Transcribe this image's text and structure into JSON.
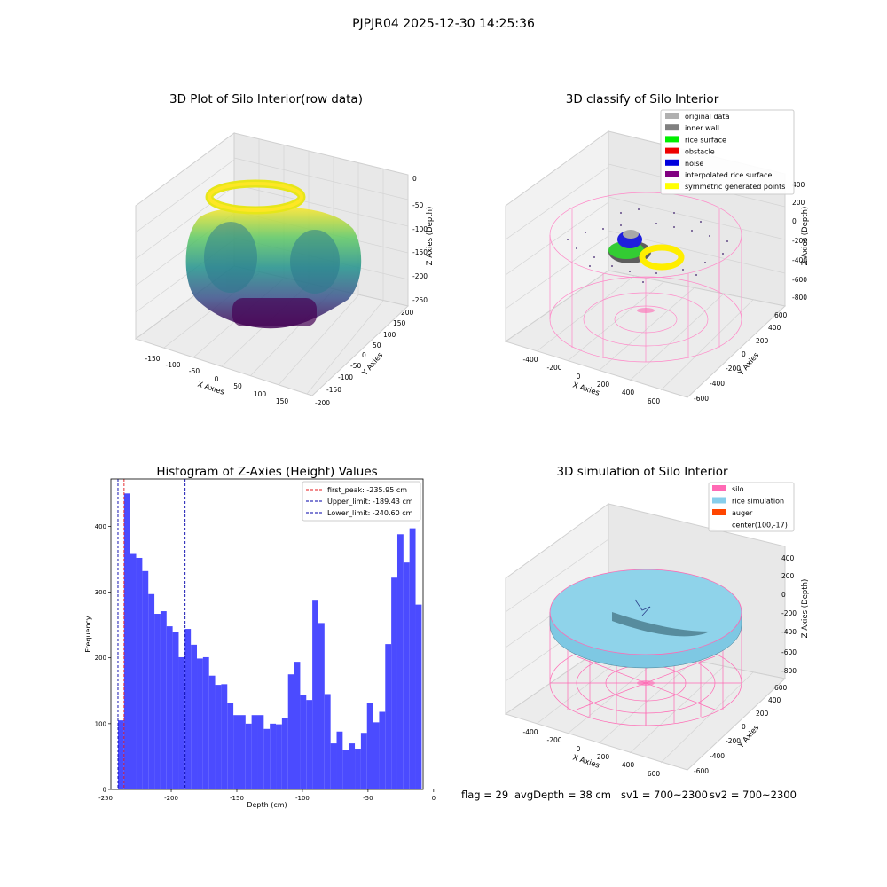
{
  "figure": {
    "suptitle": "PJPJR04 2025-12-30 14:25:36",
    "footer": {
      "flag": "flag = 29",
      "avg_depth": "avgDepth = 38 cm",
      "sv1": "sv1 = 700~2300",
      "sv2": "sv2 = 700~2300"
    }
  },
  "chart_data": [
    {
      "id": "raw3d",
      "type": "scatter",
      "title": "3D Plot of Silo Interior(row data)",
      "xlabel": "X Axies",
      "ylabel": "Y Axies",
      "zlabel": "Z Axies (Depth)",
      "x_ticks": [
        "-150",
        "-100",
        "-50",
        "0",
        "50",
        "100",
        "150"
      ],
      "y_ticks": [
        "-200",
        "-150",
        "-100",
        "-50",
        "0",
        "50",
        "100",
        "150",
        "200"
      ],
      "z_ticks": [
        "0",
        "-50",
        "-100",
        "-150",
        "-200",
        "-250"
      ],
      "xlim": [
        -180,
        180
      ],
      "ylim": [
        -200,
        200
      ],
      "zlim": [
        -250,
        0
      ],
      "colormap": "viridis",
      "grid": true
    },
    {
      "id": "classify3d",
      "type": "scatter",
      "title": "3D classify of Silo Interior",
      "xlabel": "X Axies",
      "ylabel": "Y Axies",
      "zlabel": "Z Axies (Depth)",
      "x_ticks": [
        "-400",
        "-200",
        "0",
        "200",
        "400",
        "600"
      ],
      "y_ticks": [
        "-600",
        "-400",
        "-200",
        "0",
        "200",
        "400",
        "600"
      ],
      "z_ticks": [
        "400",
        "200",
        "0",
        "-200",
        "-400",
        "-600",
        "-800"
      ],
      "legend_position": "upper-right",
      "legend": [
        {
          "label": "original data",
          "color": "#b0b0b0"
        },
        {
          "label": "inner wall",
          "color": "#808080"
        },
        {
          "label": "rice surface",
          "color": "#00ee00"
        },
        {
          "label": "obstacle",
          "color": "#ee0000"
        },
        {
          "label": "noise",
          "color": "#0000dd"
        },
        {
          "label": "interpolated rice surface",
          "color": "#800080"
        },
        {
          "label": "symmetric generated points",
          "color": "#ffff00"
        }
      ],
      "grid": true
    },
    {
      "id": "histogram",
      "type": "bar",
      "title": "Histogram of Z-Axies (Height) Values",
      "xlabel": "Depth (cm)",
      "ylabel": "Frequency",
      "xlim": [
        -246,
        -8
      ],
      "ylim": [
        0,
        472
      ],
      "x_ticks": [
        -250,
        -200,
        -150,
        -100,
        -50,
        0
      ],
      "y_ticks": [
        0,
        100,
        200,
        300,
        400
      ],
      "bin_start": -240.6,
      "bin_width": 4.63,
      "values": [
        105,
        450,
        358,
        352,
        332,
        297,
        267,
        271,
        248,
        240,
        201,
        244,
        220,
        199,
        201,
        173,
        159,
        160,
        132,
        113,
        113,
        100,
        113,
        113,
        92,
        100,
        99,
        109,
        175,
        194,
        144,
        136,
        287,
        253,
        145,
        70,
        88,
        60,
        70,
        62,
        86,
        132,
        102,
        118,
        221,
        322,
        388,
        345,
        397,
        281
      ],
      "bar_color": "#4b4bff",
      "vlines": [
        {
          "label": "first_peak: -235.95 cm",
          "x": -235.95,
          "color": "#e41a1c"
        },
        {
          "label": "Upper_limit: -189.43 cm",
          "x": -189.43,
          "color": "#0000aa"
        },
        {
          "label": "Lower_limit: -240.60 cm",
          "x": -240.6,
          "color": "#0000aa"
        }
      ],
      "legend_position": "upper-right",
      "grid": false
    },
    {
      "id": "simulation3d",
      "type": "scatter",
      "title": "3D simulation of Silo Interior",
      "xlabel": "X Axies",
      "ylabel": "Y Axies",
      "zlabel": "Z Axies (Depth)",
      "x_ticks": [
        "-400",
        "-200",
        "0",
        "200",
        "400",
        "600"
      ],
      "y_ticks": [
        "-600",
        "-400",
        "-200",
        "0",
        "200",
        "400",
        "600"
      ],
      "z_ticks": [
        "400",
        "200",
        "0",
        "-200",
        "-400",
        "-600",
        "-800"
      ],
      "legend_position": "upper-right",
      "legend": [
        {
          "label": "silo",
          "color": "#ff69b4"
        },
        {
          "label": "rice simulation",
          "color": "#87ceeb"
        },
        {
          "label": "auger",
          "color": "#ff4500"
        },
        {
          "label": "center(100,-17)",
          "color": "none"
        }
      ],
      "grid": true
    }
  ]
}
